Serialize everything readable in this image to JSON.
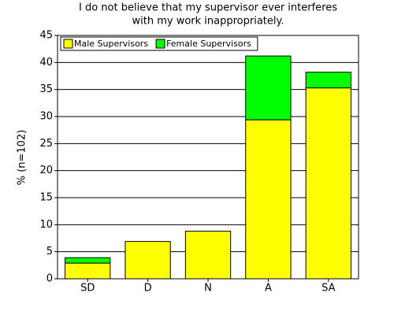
{
  "chart_data": {
    "type": "stacked_bar",
    "title": [
      "I do not believe that my supervisor ever interferes",
      "with my work inappropriately."
    ],
    "y_label": "% (n=102)",
    "categories": [
      "SD",
      "D",
      "N",
      "A",
      "SA"
    ],
    "series": [
      {
        "name": "Male Supervisors",
        "color": "#ffff00",
        "values": [
          2.9,
          6.9,
          8.8,
          29.4,
          35.3
        ]
      },
      {
        "name": "Female Supervisors",
        "color": "#00ff00",
        "values": [
          1.0,
          0,
          0,
          11.8,
          2.9
        ]
      }
    ],
    "ylim": [
      0,
      45
    ],
    "yticks": [
      0,
      5,
      10,
      15,
      20,
      25,
      30,
      35,
      40,
      45
    ],
    "grid": true,
    "legend": "top-left"
  }
}
